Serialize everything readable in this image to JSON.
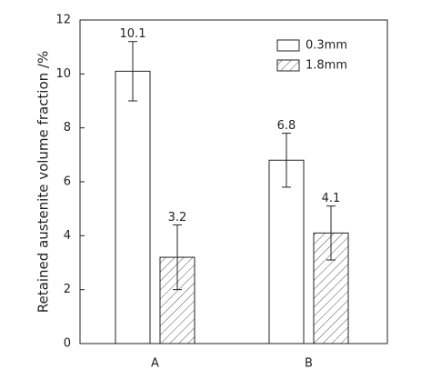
{
  "chart_data": {
    "type": "bar",
    "y_label": "Retained austenite volume fraction /%",
    "categories": [
      "A",
      "B"
    ],
    "series": [
      {
        "name": "0.3mm",
        "color": "#ffffff",
        "pattern": "none",
        "values": [
          10.1,
          6.8
        ],
        "errors": [
          1.1,
          1.0
        ]
      },
      {
        "name": "1.8mm",
        "color": "#ffffff",
        "pattern": "hatch",
        "values": [
          3.2,
          4.1
        ],
        "errors": [
          1.2,
          1.0
        ]
      }
    ],
    "ylim": [
      0,
      12
    ],
    "yticks": [
      0,
      2,
      4,
      6,
      8,
      10,
      12
    ],
    "grid": false,
    "legend": "upper right"
  }
}
